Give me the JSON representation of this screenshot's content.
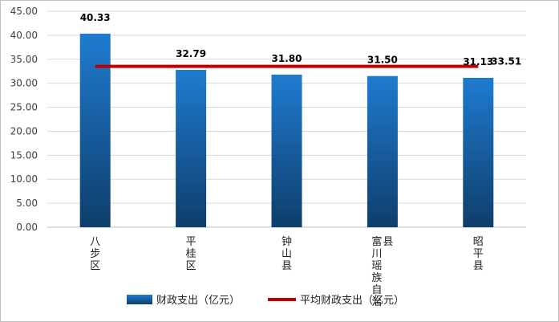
{
  "chart_data": {
    "type": "bar",
    "categories": [
      "八步区",
      "平桂区",
      "钟山县",
      "富川瑶族自治县",
      "昭平县"
    ],
    "series": [
      {
        "name": "财政支出（亿元）",
        "type": "bar",
        "values": [
          40.33,
          32.79,
          31.8,
          31.5,
          31.13
        ],
        "color": "#1f6fbf"
      },
      {
        "name": "平均财政支出（亿元）",
        "type": "line",
        "values": [
          33.51,
          33.51,
          33.51,
          33.51,
          33.51
        ],
        "color": "#c00000"
      }
    ],
    "data_labels": [
      "40.33",
      "32.79",
      "31.80",
      "31.50",
      "31.13"
    ],
    "average_label": "33.51",
    "yticks": [
      "0.00",
      "5.00",
      "10.00",
      "15.00",
      "20.00",
      "25.00",
      "30.00",
      "35.00",
      "40.00",
      "45.00"
    ],
    "ylim": [
      0,
      45
    ],
    "grid": true,
    "legend_position": "bottom"
  }
}
